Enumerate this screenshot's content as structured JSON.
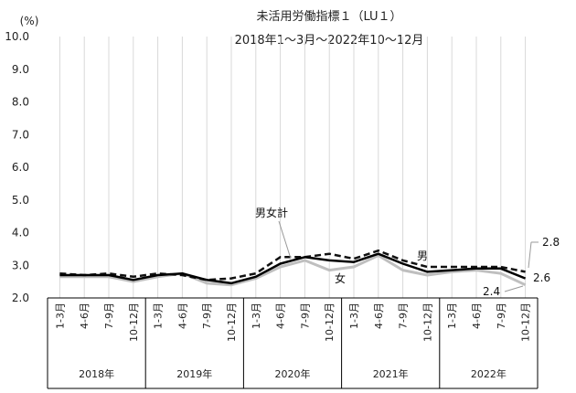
{
  "chart_data": {
    "type": "line",
    "title": "未活用労働指標１（LU１）",
    "subtitle": "2018年1～3月～2022年10～12月",
    "ylabel": "(%)",
    "ylim": [
      2.0,
      10.0
    ],
    "yticks": [
      "2.0",
      "3.0",
      "4.0",
      "5.0",
      "6.0",
      "7.0",
      "8.0",
      "9.0",
      "10.0"
    ],
    "categories": [
      "1-3月",
      "4-6月",
      "7-9月",
      "10-12月",
      "1-3月",
      "4-6月",
      "7-9月",
      "10-12月",
      "1-3月",
      "4-6月",
      "7-9月",
      "10-12月",
      "1-3月",
      "4-6月",
      "7-9月",
      "10-12月",
      "1-3月",
      "4-6月",
      "7-9月",
      "10-12月"
    ],
    "years": [
      "2018年",
      "2019年",
      "2020年",
      "2021年",
      "2022年"
    ],
    "series": [
      {
        "name": "男",
        "style": "dashed",
        "color": "#111111",
        "values": [
          2.75,
          2.7,
          2.75,
          2.65,
          2.75,
          2.7,
          2.55,
          2.6,
          2.75,
          3.25,
          3.25,
          3.35,
          3.2,
          3.45,
          3.15,
          2.95,
          2.95,
          2.95,
          2.95,
          2.8
        ]
      },
      {
        "name": "男女計",
        "style": "solid",
        "color": "#000000",
        "values": [
          2.7,
          2.7,
          2.7,
          2.55,
          2.7,
          2.75,
          2.55,
          2.45,
          2.65,
          3.05,
          3.25,
          3.15,
          3.1,
          3.35,
          3.05,
          2.8,
          2.85,
          2.9,
          2.9,
          2.6
        ]
      },
      {
        "name": "女",
        "style": "solid",
        "color": "#bfbfbf",
        "values": [
          2.65,
          2.65,
          2.65,
          2.5,
          2.65,
          2.75,
          2.45,
          2.4,
          2.6,
          2.95,
          3.15,
          2.85,
          2.95,
          3.3,
          2.85,
          2.7,
          2.8,
          2.85,
          2.75,
          2.4
        ]
      }
    ],
    "annotations": [
      {
        "text": "男女計"
      },
      {
        "text": "男"
      },
      {
        "text": "女"
      },
      {
        "text": "2.8"
      },
      {
        "text": "2.6"
      },
      {
        "text": "2.4"
      }
    ],
    "grid": "vertical"
  }
}
